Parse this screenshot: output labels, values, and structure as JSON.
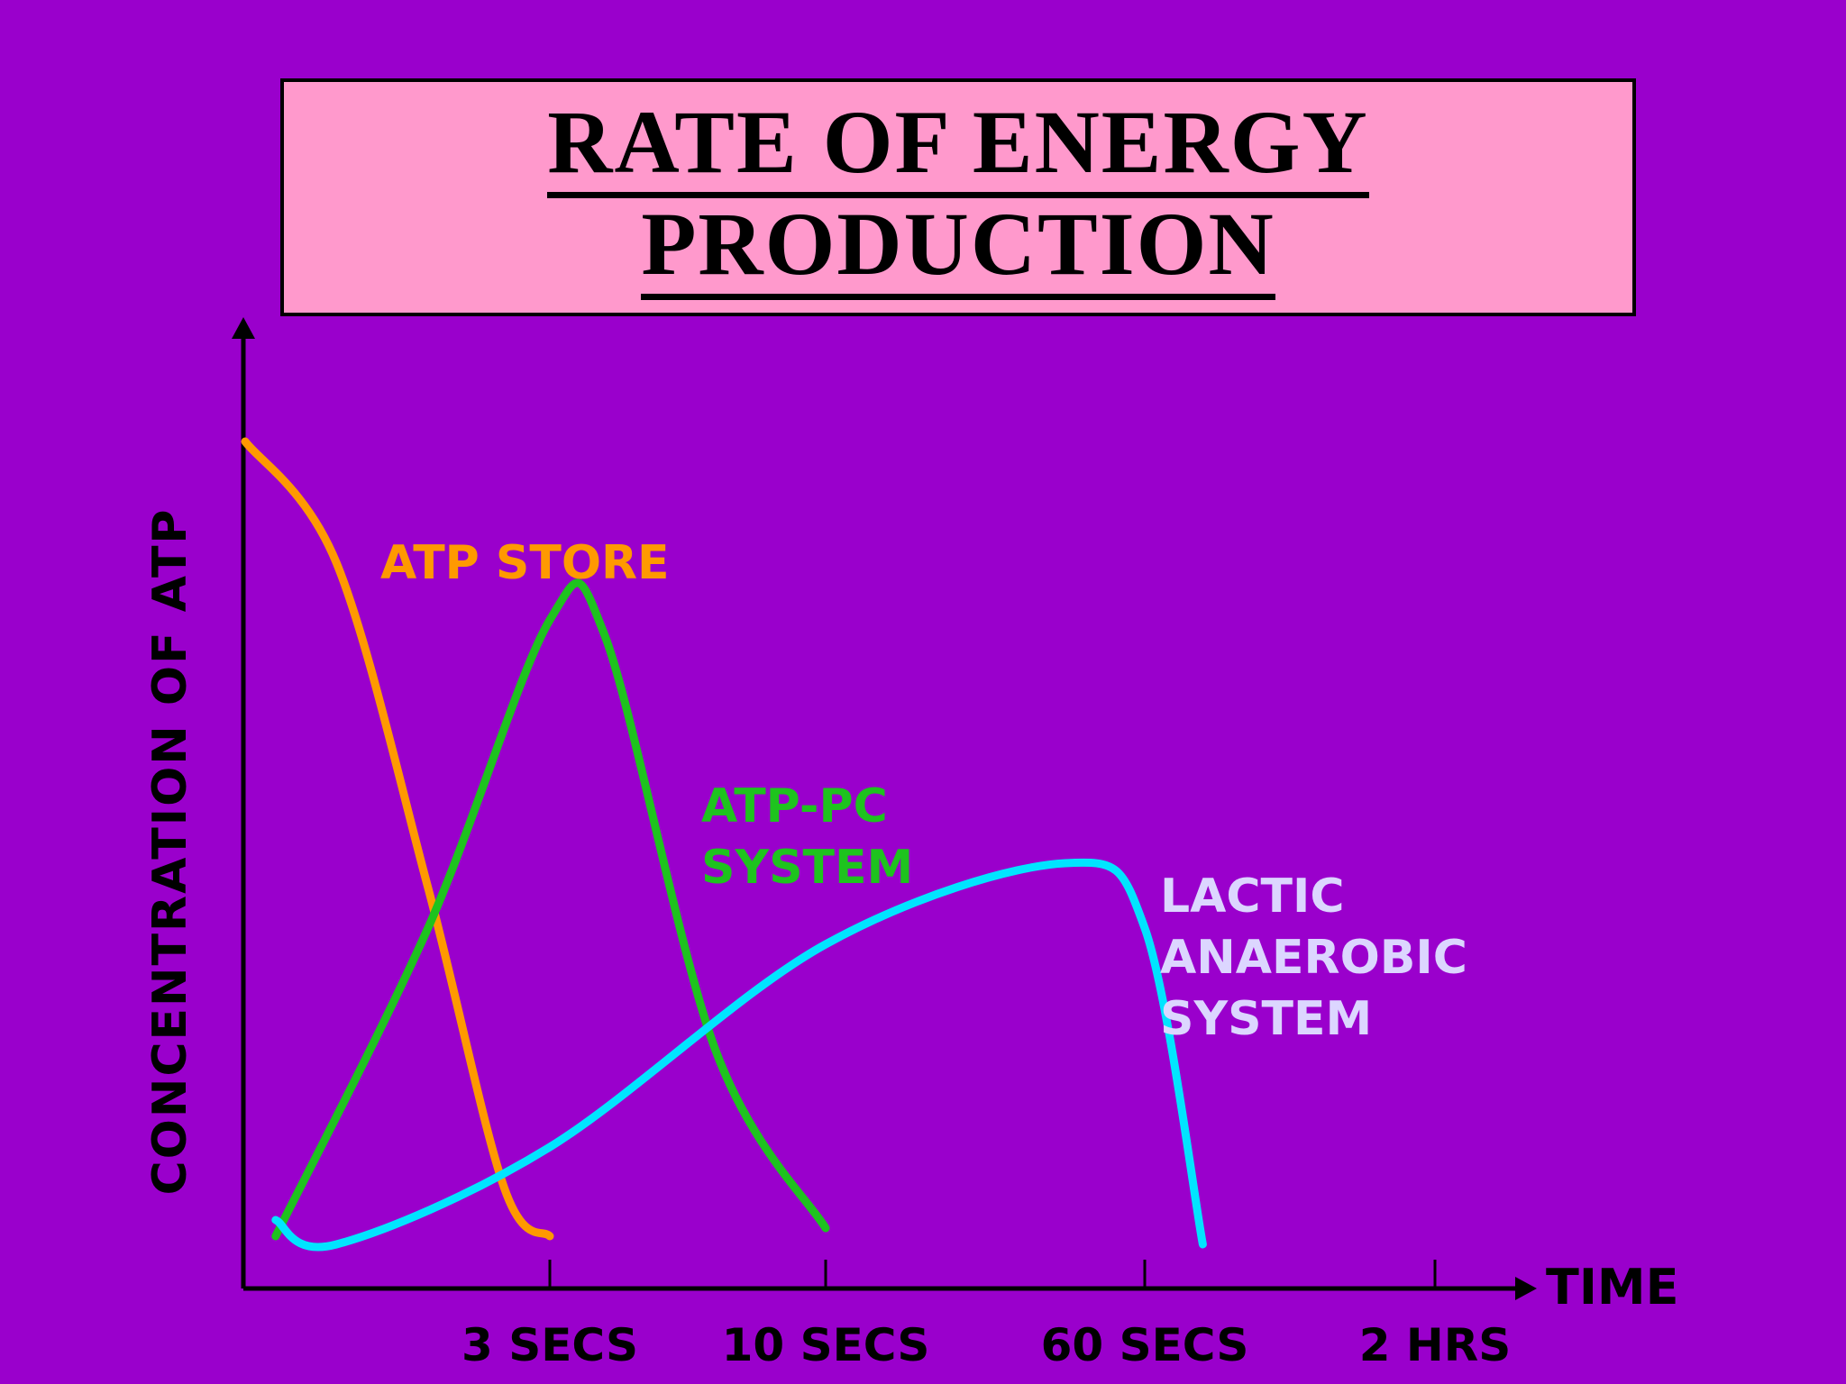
{
  "title": {
    "line1": "RATE OF ENERGY",
    "line2": "PRODUCTION"
  },
  "colors": {
    "background": "#9a00cc",
    "title_box": "#ff99cc",
    "atp_store": "#ff9900",
    "atp_pc": "#1ec31e",
    "lactic": "#00e5ff",
    "lactic_label": "#dcd6ff",
    "axis": "#000000"
  },
  "chart_data": {
    "type": "line",
    "title": "RATE OF ENERGY PRODUCTION",
    "xlabel": "TIME",
    "ylabel": "CONCENTRATION OF ATP",
    "grid": false,
    "legend": "none",
    "x_scale": "ordinal (non-linear time)",
    "x_ticks": [
      "3 SECS",
      "10 SECS",
      "60 SECS",
      "2 HRS"
    ],
    "ylim": [
      0,
      100
    ],
    "series": [
      {
        "name": "ATP STORE",
        "label_lines": [
          "ATP STORE"
        ],
        "color": "#ff9900",
        "x": [
          0,
          0.3,
          0.6,
          0.85,
          1.0
        ],
        "y": [
          100,
          85,
          45,
          8,
          2
        ]
      },
      {
        "name": "ATP-PC SYSTEM",
        "label_lines": [
          "ATP-PC",
          "SYSTEM"
        ],
        "color": "#1ec31e",
        "x": [
          0.1,
          0.6,
          1.0,
          1.2,
          1.6,
          2.0
        ],
        "y": [
          2,
          40,
          78,
          76,
          25,
          3
        ]
      },
      {
        "name": "LACTIC ANAEROBIC SYSTEM",
        "label_lines": [
          "LACTIC",
          "ANAEROBIC",
          "SYSTEM"
        ],
        "color": "#00e5ff",
        "x": [
          0.1,
          0.3,
          1.0,
          2.0,
          2.75,
          3.0,
          3.2
        ],
        "y": [
          4,
          1,
          13,
          38,
          48,
          40,
          1
        ]
      }
    ]
  }
}
